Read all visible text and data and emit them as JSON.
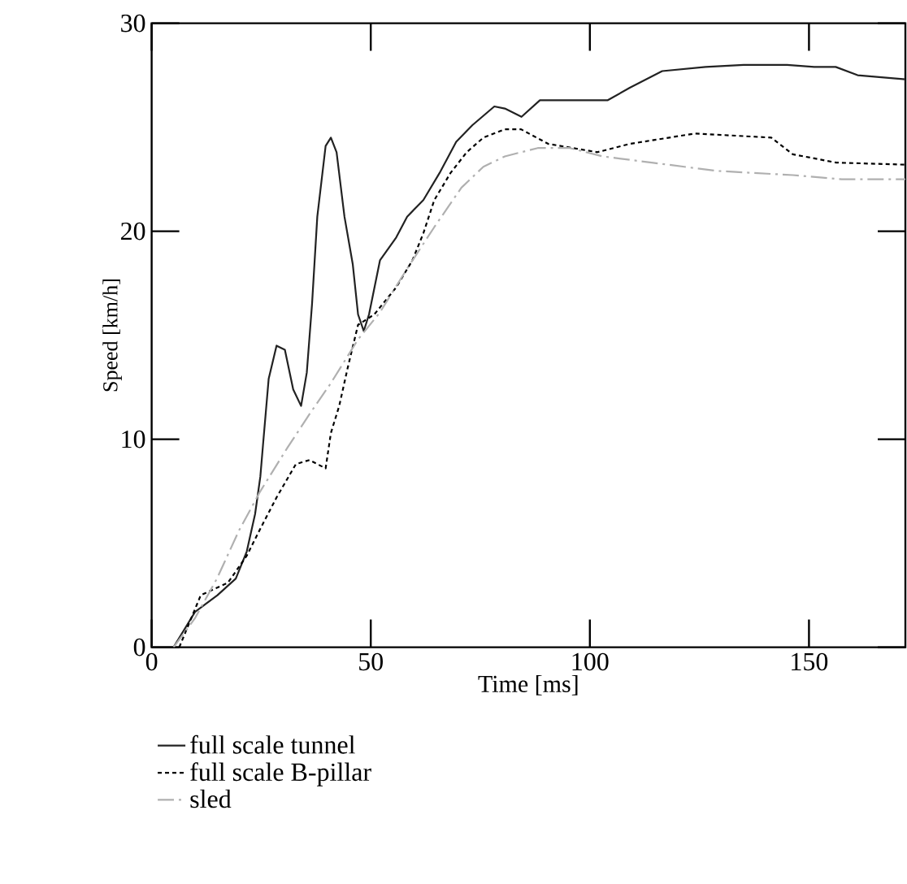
{
  "chart_data": {
    "type": "line",
    "xlabel": "Time [ms]",
    "ylabel": "Speed [km/h]",
    "xlim": [
      0,
      172
    ],
    "ylim": [
      0,
      30
    ],
    "xticks": [
      0,
      50,
      100,
      150
    ],
    "yticks": [
      0,
      10,
      20,
      30
    ],
    "legend": "bottom",
    "series": [
      {
        "name": "full scale tunnel",
        "color": "#222222",
        "line_style": "solid",
        "x": [
          0,
          5.0,
          9.9,
          15,
          19.2,
          21.7,
          23.6,
          24.8,
          25.4,
          26.7,
          28.5,
          30.4,
          32.3,
          34.1,
          35.4,
          36.6,
          37.8,
          39.7,
          40.9,
          42.2,
          44.0,
          45.9,
          47.1,
          48.4,
          49.6,
          52.1,
          55.8,
          58.3,
          62.0,
          65.7,
          69.5,
          73.2,
          78.2,
          80.6,
          84.4,
          88.6,
          104.1,
          109.1,
          116.5,
          126.4,
          135.1,
          145.0,
          151.2,
          156.1,
          161.1,
          172.0
        ],
        "values": [
          0,
          0,
          1.7,
          2.5,
          3.3,
          4.6,
          6.4,
          8.2,
          9.7,
          12.9,
          14.5,
          14.3,
          12.4,
          11.6,
          13.2,
          16.5,
          20.7,
          24.1,
          24.5,
          23.8,
          20.7,
          18.4,
          16.0,
          15.2,
          16.0,
          18.6,
          19.7,
          20.7,
          21.5,
          22.8,
          24.3,
          25.1,
          26.0,
          25.9,
          25.5,
          26.3,
          26.3,
          26.9,
          27.7,
          27.9,
          28.0,
          28.0,
          27.9,
          27.9,
          27.5,
          27.3
        ]
      },
      {
        "name": "full scale B-pillar",
        "color": "#000000",
        "line_style": "dotted",
        "x": [
          6.3,
          11.2,
          17.4,
          21.7,
          24.8,
          28.5,
          32.9,
          36.0,
          39.7,
          40.9,
          42.8,
          44.7,
          47.1,
          50.8,
          55.8,
          59.5,
          62.0,
          64.5,
          68.2,
          71.9,
          75.7,
          80.6,
          84.3,
          90.5,
          101.7,
          109.1,
          124.0,
          141.4,
          146.3,
          156.2,
          172.0
        ],
        "values": [
          0,
          2.5,
          3.1,
          4.4,
          5.7,
          7.2,
          8.8,
          9.0,
          8.6,
          10.3,
          11.6,
          13.4,
          15.5,
          16.0,
          17.3,
          18.6,
          19.9,
          21.5,
          22.8,
          23.8,
          24.5,
          24.9,
          24.9,
          24.2,
          23.8,
          24.2,
          24.7,
          24.5,
          23.7,
          23.3,
          23.2
        ]
      },
      {
        "name": "sled",
        "color": "#b0b0b0",
        "line_style": "dashed",
        "x": [
          5.0,
          9.9,
          14.9,
          19.9,
          24.8,
          31.0,
          36.0,
          40.9,
          47.1,
          52.1,
          58.3,
          64.5,
          70.7,
          75.7,
          80.6,
          88.1,
          95.4,
          102.9,
          114.1,
          129.0,
          146.3,
          157.5,
          172.0
        ],
        "values": [
          0,
          1.4,
          3.3,
          5.6,
          7.5,
          9.6,
          11.2,
          12.7,
          14.8,
          16.1,
          18.2,
          20.2,
          22.1,
          23.1,
          23.6,
          24.0,
          24.0,
          23.6,
          23.3,
          22.9,
          22.7,
          22.5,
          22.5
        ]
      }
    ]
  }
}
